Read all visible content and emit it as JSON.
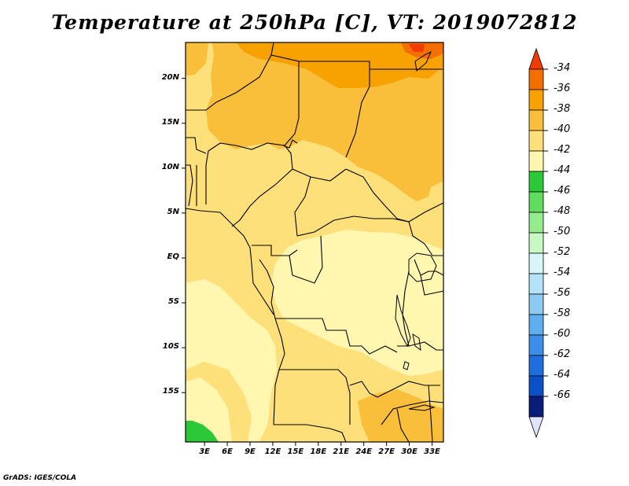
{
  "title": "Temperature at 250hPa [C], VT: 2019072812",
  "credit": "GrADS: IGES/COLA",
  "map": {
    "lat_ticks": [
      {
        "lat": 20,
        "label": "20N"
      },
      {
        "lat": 15,
        "label": "15N"
      },
      {
        "lat": 10,
        "label": "10N"
      },
      {
        "lat": 5,
        "label": "5N"
      },
      {
        "lat": 0,
        "label": "EQ"
      },
      {
        "lat": -5,
        "label": "5S"
      },
      {
        "lat": -10,
        "label": "10S"
      },
      {
        "lat": -15,
        "label": "15S"
      }
    ],
    "lon_ticks": [
      {
        "lon": 3,
        "label": "3E"
      },
      {
        "lon": 6,
        "label": "6E"
      },
      {
        "lon": 9,
        "label": "9E"
      },
      {
        "lon": 12,
        "label": "12E"
      },
      {
        "lon": 15,
        "label": "15E"
      },
      {
        "lon": 18,
        "label": "18E"
      },
      {
        "lon": 21,
        "label": "21E"
      },
      {
        "lon": 24,
        "label": "24E"
      },
      {
        "lon": 27,
        "label": "27E"
      },
      {
        "lon": 30,
        "label": "30E"
      },
      {
        "lon": 33,
        "label": "33E"
      }
    ]
  },
  "colorbar": {
    "labels": [
      "-34",
      "-36",
      "-38",
      "-40",
      "-42",
      "-44",
      "-46",
      "-48",
      "-50",
      "-52",
      "-54",
      "-56",
      "-58",
      "-60",
      "-62",
      "-64",
      "-66"
    ],
    "colors": [
      "#f03c00",
      "#f46e00",
      "#f7a200",
      "#f9be3a",
      "#fde07a",
      "#fff6b0",
      "#2bc837",
      "#60dc5e",
      "#96ec8c",
      "#c8f8c4",
      "#d8f6fa",
      "#b4e2f6",
      "#8ccaf2",
      "#5eaef0",
      "#3c8ee8",
      "#1e6ee0",
      "#0c50c8",
      "#0a1c7a",
      "#e0e4ff"
    ]
  },
  "regions": [
    {
      "name": "region-warm-north",
      "color": "#f9be3a"
    },
    {
      "name": "region-hot-northeast",
      "color": "#f7a200"
    },
    {
      "name": "region-hottest-spot",
      "color": "#f03c00"
    },
    {
      "name": "region-central-pale",
      "color": "#fff6b0"
    },
    {
      "name": "region-cold-southwest",
      "color": "#2bc837"
    }
  ]
}
